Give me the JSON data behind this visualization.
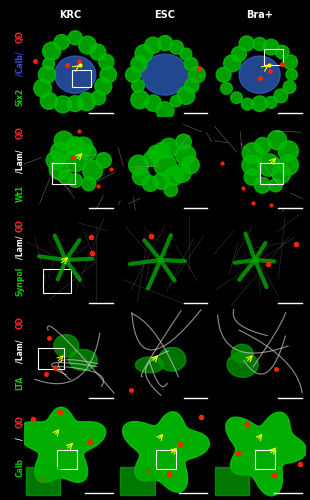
{
  "col_headers": [
    "KRC",
    "ESC",
    "Bra+"
  ],
  "row_labels": [
    {
      "parts": [
        {
          "text": "Six2",
          "color": "#00cc00"
        },
        {
          "text": "/Calb/",
          "color": "#4444ff"
        },
        {
          "text": "QD",
          "color": "#ff2222"
        }
      ]
    },
    {
      "parts": [
        {
          "text": "Wt1",
          "color": "#00cc00"
        },
        {
          "text": "/Lam/",
          "color": "#ffffff"
        },
        {
          "text": "QD",
          "color": "#ff2222"
        }
      ]
    },
    {
      "parts": [
        {
          "text": "Synpol",
          "color": "#00cc00"
        },
        {
          "text": "/Lam/",
          "color": "#ffffff"
        },
        {
          "text": "QD",
          "color": "#ff2222"
        }
      ]
    },
    {
      "parts": [
        {
          "text": "LTA",
          "color": "#00cc00"
        },
        {
          "text": "/Lam/",
          "color": "#ffffff"
        },
        {
          "text": "QD",
          "color": "#ff2222"
        }
      ]
    },
    {
      "parts": [
        {
          "text": "Calb",
          "color": "#00cc00"
        },
        {
          "text": "/",
          "color": "#ffffff"
        },
        {
          "text": "QD",
          "color": "#ff2222"
        }
      ]
    }
  ],
  "n_rows": 5,
  "n_cols": 3,
  "bg_color": "#000000",
  "header_color": "#ffffff",
  "header_fontsize": 7,
  "label_fontsize": 5.5,
  "fig_width": 3.1,
  "fig_height": 5.0,
  "dpi": 100
}
